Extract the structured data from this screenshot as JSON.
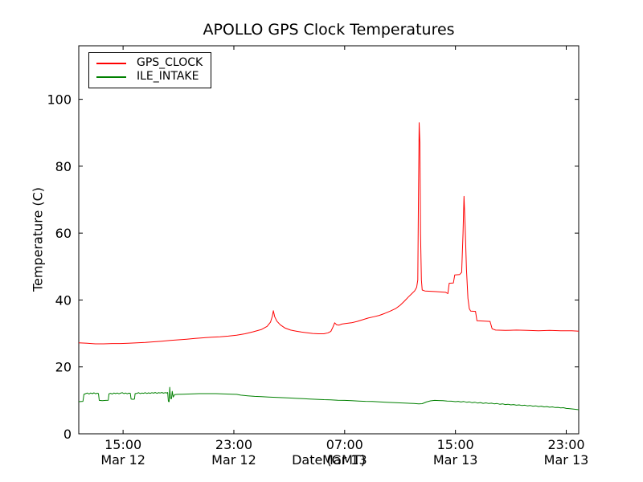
{
  "chart_data": {
    "type": "line",
    "title": "APOLLO GPS Clock Temperatures",
    "xlabel": "Date (GMT)",
    "ylabel": "Temperature (C)",
    "x_axis_unit": "hours since Mar 12 00:00 GMT",
    "xlim": [
      11.8,
      47.9
    ],
    "ylim": [
      0,
      116
    ],
    "grid": false,
    "legend_position": "upper left",
    "tick_direction": "in",
    "axis_color": "#000000",
    "background_color": "#ffffff",
    "x_ticks": [
      {
        "value": 15,
        "time": "15:00",
        "date": "Mar 12"
      },
      {
        "value": 23,
        "time": "23:00",
        "date": "Mar 12"
      },
      {
        "value": 31,
        "time": "07:00",
        "date": "Mar 13"
      },
      {
        "value": 39,
        "time": "15:00",
        "date": "Mar 13"
      },
      {
        "value": 47,
        "time": "23:00",
        "date": "Mar 13"
      }
    ],
    "y_ticks": [
      0,
      20,
      40,
      60,
      80,
      100
    ],
    "series": [
      {
        "name": "GPS_CLOCK",
        "color": "#ff0000",
        "points": [
          [
            11.8,
            27.2
          ],
          [
            12.4,
            27.1
          ],
          [
            13.0,
            26.9
          ],
          [
            13.6,
            26.9
          ],
          [
            14.2,
            27.0
          ],
          [
            14.8,
            27.0
          ],
          [
            15.4,
            27.1
          ],
          [
            16.0,
            27.2
          ],
          [
            16.6,
            27.3
          ],
          [
            17.2,
            27.5
          ],
          [
            17.8,
            27.7
          ],
          [
            18.4,
            27.9
          ],
          [
            19.0,
            28.1
          ],
          [
            19.6,
            28.3
          ],
          [
            20.2,
            28.5
          ],
          [
            20.8,
            28.7
          ],
          [
            21.4,
            28.9
          ],
          [
            22.0,
            29.0
          ],
          [
            22.6,
            29.2
          ],
          [
            23.2,
            29.5
          ],
          [
            23.8,
            29.9
          ],
          [
            24.4,
            30.5
          ],
          [
            25.0,
            31.2
          ],
          [
            25.4,
            32.1
          ],
          [
            25.65,
            33.4
          ],
          [
            25.78,
            35.2
          ],
          [
            25.85,
            36.8
          ],
          [
            25.95,
            35.0
          ],
          [
            26.1,
            33.7
          ],
          [
            26.35,
            32.6
          ],
          [
            26.7,
            31.6
          ],
          [
            27.1,
            31.0
          ],
          [
            27.5,
            30.7
          ],
          [
            27.9,
            30.4
          ],
          [
            28.3,
            30.2
          ],
          [
            28.7,
            30.0
          ],
          [
            29.1,
            29.9
          ],
          [
            29.5,
            29.9
          ],
          [
            29.8,
            30.2
          ],
          [
            30.0,
            30.6
          ],
          [
            30.15,
            31.9
          ],
          [
            30.28,
            33.2
          ],
          [
            30.42,
            32.6
          ],
          [
            30.6,
            32.5
          ],
          [
            30.8,
            32.8
          ],
          [
            31.1,
            33.0
          ],
          [
            31.5,
            33.2
          ],
          [
            31.9,
            33.6
          ],
          [
            32.3,
            34.1
          ],
          [
            32.7,
            34.6
          ],
          [
            33.1,
            35.0
          ],
          [
            33.5,
            35.4
          ],
          [
            33.9,
            36.0
          ],
          [
            34.3,
            36.7
          ],
          [
            34.7,
            37.5
          ],
          [
            35.0,
            38.4
          ],
          [
            35.3,
            39.6
          ],
          [
            35.6,
            40.9
          ],
          [
            35.85,
            41.9
          ],
          [
            36.05,
            42.7
          ],
          [
            36.2,
            43.8
          ],
          [
            36.28,
            46.0
          ],
          [
            36.33,
            70.0
          ],
          [
            36.38,
            93.0
          ],
          [
            36.43,
            87.0
          ],
          [
            36.48,
            60.0
          ],
          [
            36.54,
            46.0
          ],
          [
            36.6,
            43.0
          ],
          [
            36.8,
            42.7
          ],
          [
            37.2,
            42.6
          ],
          [
            37.6,
            42.5
          ],
          [
            38.0,
            42.4
          ],
          [
            38.3,
            42.3
          ],
          [
            38.45,
            41.9
          ],
          [
            38.55,
            45.0
          ],
          [
            38.85,
            45.1
          ],
          [
            38.95,
            47.5
          ],
          [
            39.3,
            47.6
          ],
          [
            39.45,
            48.3
          ],
          [
            39.55,
            60.0
          ],
          [
            39.62,
            71.0
          ],
          [
            39.7,
            62.0
          ],
          [
            39.8,
            49.0
          ],
          [
            39.9,
            40.5
          ],
          [
            40.0,
            37.4
          ],
          [
            40.1,
            36.7
          ],
          [
            40.45,
            36.6
          ],
          [
            40.55,
            33.8
          ],
          [
            41.5,
            33.6
          ],
          [
            41.65,
            31.4
          ],
          [
            41.9,
            31.0
          ],
          [
            42.6,
            30.9
          ],
          [
            43.4,
            31.0
          ],
          [
            44.2,
            30.9
          ],
          [
            45.0,
            30.8
          ],
          [
            45.8,
            30.9
          ],
          [
            46.6,
            30.8
          ],
          [
            47.4,
            30.8
          ],
          [
            47.9,
            30.7
          ]
        ]
      },
      {
        "name": "ILE_INTAKE",
        "color": "#008000",
        "points": [
          [
            11.8,
            9.6
          ],
          [
            12.1,
            9.7
          ],
          [
            12.17,
            11.8
          ],
          [
            12.3,
            12.0
          ],
          [
            12.42,
            12.2
          ],
          [
            12.54,
            11.9
          ],
          [
            12.66,
            12.2
          ],
          [
            12.78,
            12.0
          ],
          [
            12.9,
            12.25
          ],
          [
            13.02,
            11.95
          ],
          [
            13.14,
            12.15
          ],
          [
            13.22,
            12.0
          ],
          [
            13.28,
            10.0
          ],
          [
            13.5,
            9.9
          ],
          [
            13.75,
            10.0
          ],
          [
            13.93,
            10.05
          ],
          [
            13.98,
            11.95
          ],
          [
            14.1,
            12.1
          ],
          [
            14.22,
            11.9
          ],
          [
            14.34,
            12.2
          ],
          [
            14.46,
            12.0
          ],
          [
            14.58,
            12.2
          ],
          [
            14.7,
            11.95
          ],
          [
            14.82,
            12.15
          ],
          [
            14.94,
            12.3
          ],
          [
            15.06,
            12.0
          ],
          [
            15.18,
            12.2
          ],
          [
            15.3,
            11.95
          ],
          [
            15.42,
            12.15
          ],
          [
            15.52,
            12.1
          ],
          [
            15.58,
            10.4
          ],
          [
            15.72,
            10.3
          ],
          [
            15.82,
            10.4
          ],
          [
            15.87,
            12.0
          ],
          [
            16.0,
            12.1
          ],
          [
            16.12,
            12.3
          ],
          [
            16.24,
            12.0
          ],
          [
            16.36,
            12.2
          ],
          [
            16.48,
            12.1
          ],
          [
            16.6,
            12.3
          ],
          [
            16.72,
            12.05
          ],
          [
            16.84,
            12.25
          ],
          [
            16.96,
            12.1
          ],
          [
            17.08,
            12.3
          ],
          [
            17.2,
            12.15
          ],
          [
            17.32,
            12.35
          ],
          [
            17.44,
            12.1
          ],
          [
            17.56,
            12.3
          ],
          [
            17.68,
            12.2
          ],
          [
            17.8,
            12.35
          ],
          [
            17.92,
            12.15
          ],
          [
            18.04,
            12.3
          ],
          [
            18.15,
            12.2
          ],
          [
            18.22,
            12.35
          ],
          [
            18.27,
            9.7
          ],
          [
            18.33,
            9.6
          ],
          [
            18.37,
            13.9
          ],
          [
            18.42,
            10.6
          ],
          [
            18.5,
            10.5
          ],
          [
            18.55,
            12.7
          ],
          [
            18.62,
            11.0
          ],
          [
            18.72,
            11.7
          ],
          [
            18.9,
            11.8
          ],
          [
            19.3,
            11.85
          ],
          [
            19.7,
            11.9
          ],
          [
            20.1,
            11.95
          ],
          [
            20.5,
            12.0
          ],
          [
            20.9,
            12.0
          ],
          [
            21.3,
            12.0
          ],
          [
            21.7,
            12.0
          ],
          [
            22.1,
            11.95
          ],
          [
            22.5,
            11.9
          ],
          [
            22.9,
            11.85
          ],
          [
            23.2,
            11.8
          ],
          [
            23.5,
            11.55
          ],
          [
            24.0,
            11.35
          ],
          [
            24.5,
            11.2
          ],
          [
            25.0,
            11.1
          ],
          [
            25.5,
            11.0
          ],
          [
            26.0,
            10.9
          ],
          [
            26.5,
            10.8
          ],
          [
            27.0,
            10.7
          ],
          [
            27.5,
            10.6
          ],
          [
            28.0,
            10.5
          ],
          [
            28.5,
            10.4
          ],
          [
            29.0,
            10.3
          ],
          [
            29.5,
            10.2
          ],
          [
            30.0,
            10.15
          ],
          [
            30.5,
            10.05
          ],
          [
            31.0,
            10.0
          ],
          [
            31.5,
            9.9
          ],
          [
            32.0,
            9.8
          ],
          [
            32.5,
            9.7
          ],
          [
            33.0,
            9.65
          ],
          [
            33.5,
            9.55
          ],
          [
            34.0,
            9.45
          ],
          [
            34.5,
            9.35
          ],
          [
            35.0,
            9.25
          ],
          [
            35.5,
            9.15
          ],
          [
            36.0,
            9.05
          ],
          [
            36.35,
            8.95
          ],
          [
            36.6,
            9.0
          ],
          [
            36.9,
            9.5
          ],
          [
            37.2,
            9.85
          ],
          [
            37.5,
            10.0
          ],
          [
            37.8,
            9.95
          ],
          [
            38.1,
            9.9
          ],
          [
            38.4,
            9.8
          ],
          [
            38.7,
            9.75
          ],
          [
            39.0,
            9.6
          ],
          [
            39.2,
            9.7
          ],
          [
            39.4,
            9.5
          ],
          [
            39.6,
            9.65
          ],
          [
            39.8,
            9.45
          ],
          [
            40.0,
            9.55
          ],
          [
            40.2,
            9.3
          ],
          [
            40.4,
            9.45
          ],
          [
            40.6,
            9.2
          ],
          [
            40.8,
            9.35
          ],
          [
            41.0,
            9.1
          ],
          [
            41.2,
            9.25
          ],
          [
            41.4,
            9.05
          ],
          [
            41.6,
            9.15
          ],
          [
            41.8,
            8.95
          ],
          [
            42.0,
            9.05
          ],
          [
            42.2,
            8.85
          ],
          [
            42.4,
            8.95
          ],
          [
            42.6,
            8.75
          ],
          [
            42.8,
            8.85
          ],
          [
            43.0,
            8.65
          ],
          [
            43.2,
            8.75
          ],
          [
            43.4,
            8.55
          ],
          [
            43.6,
            8.65
          ],
          [
            43.8,
            8.45
          ],
          [
            44.0,
            8.55
          ],
          [
            44.2,
            8.35
          ],
          [
            44.4,
            8.45
          ],
          [
            44.6,
            8.25
          ],
          [
            44.8,
            8.35
          ],
          [
            45.0,
            8.15
          ],
          [
            45.2,
            8.25
          ],
          [
            45.4,
            8.05
          ],
          [
            45.6,
            8.15
          ],
          [
            45.8,
            7.95
          ],
          [
            46.0,
            8.05
          ],
          [
            46.2,
            7.85
          ],
          [
            46.4,
            7.9
          ],
          [
            46.6,
            7.75
          ],
          [
            46.8,
            7.8
          ],
          [
            47.0,
            7.6
          ],
          [
            47.2,
            7.55
          ],
          [
            47.4,
            7.45
          ],
          [
            47.6,
            7.35
          ],
          [
            47.9,
            7.2
          ]
        ]
      }
    ]
  }
}
